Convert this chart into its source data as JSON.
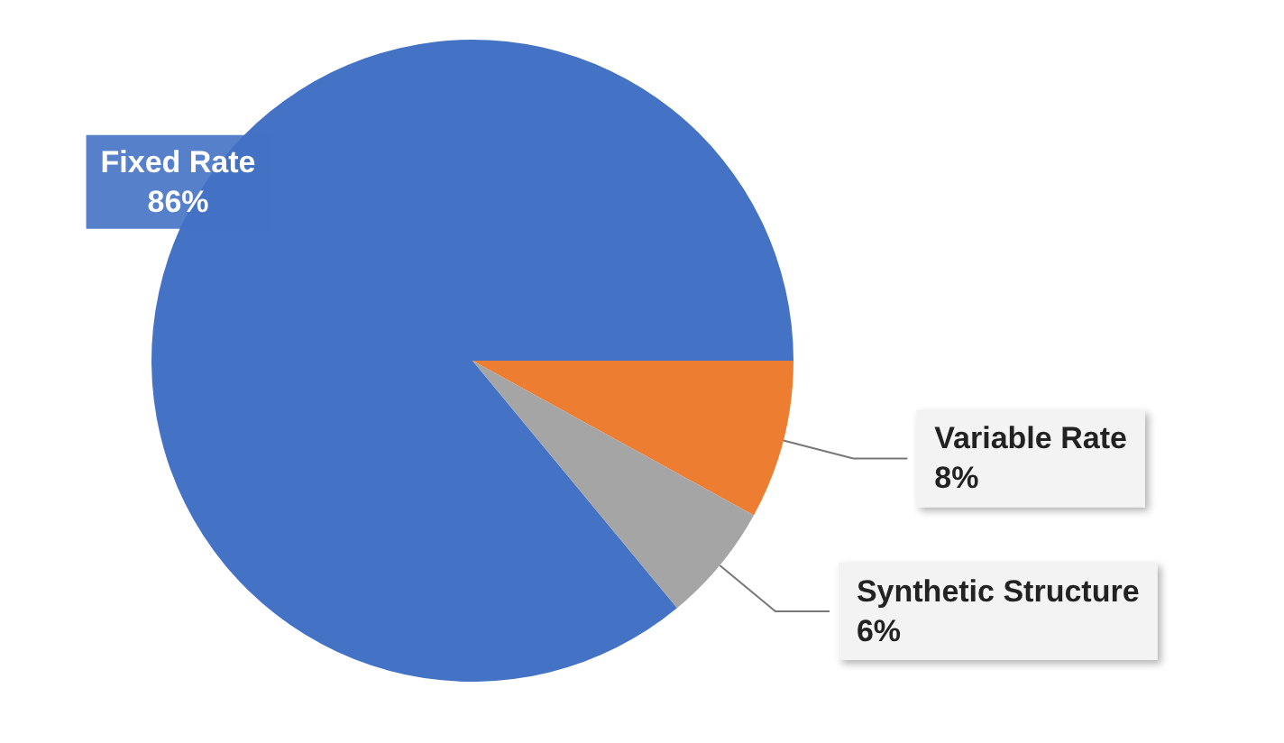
{
  "chart_data": {
    "type": "pie",
    "categories": [
      "Fixed Rate",
      "Variable Rate",
      "Synthetic Structure"
    ],
    "values": [
      86,
      8,
      6
    ],
    "value_labels": [
      "86%",
      "8%",
      "6%"
    ],
    "colors": [
      "#4472c4",
      "#ed7d31",
      "#a5a5a5"
    ],
    "legend": false
  }
}
